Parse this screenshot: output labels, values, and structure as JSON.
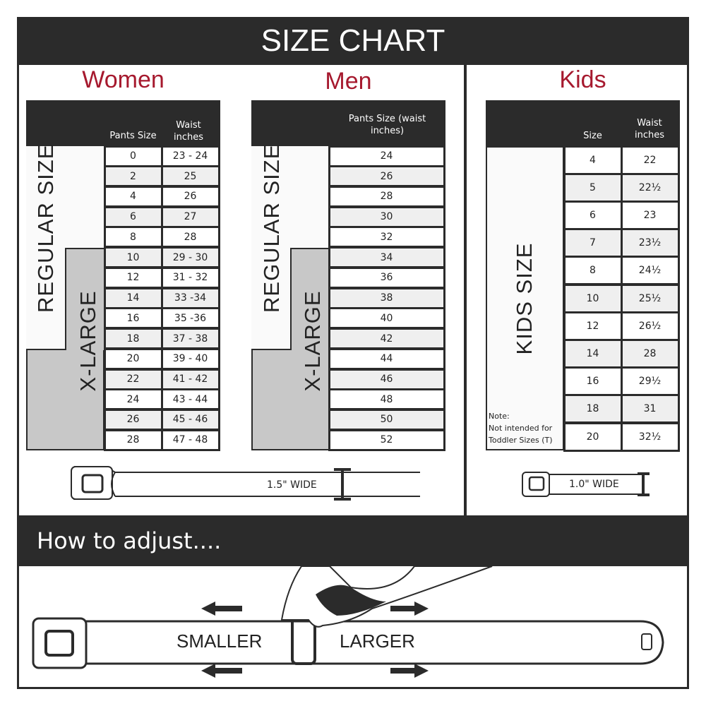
{
  "title": "SIZE CHART",
  "accent": "#a6192e",
  "women": {
    "heading": "Women",
    "col1": "Pants Size",
    "col2": "Waist inches",
    "regular": "REGULAR SIZE",
    "xlarge": "X-LARGE",
    "rows": [
      [
        "0",
        "23 - 24"
      ],
      [
        "2",
        "25"
      ],
      [
        "4",
        "26"
      ],
      [
        "6",
        "27"
      ],
      [
        "8",
        "28"
      ],
      [
        "10",
        "29 - 30"
      ],
      [
        "12",
        "31 - 32"
      ],
      [
        "14",
        "33 -34"
      ],
      [
        "16",
        "35 -36"
      ],
      [
        "18",
        "37 - 38"
      ],
      [
        "20",
        "39 - 40"
      ],
      [
        "22",
        "41 - 42"
      ],
      [
        "24",
        "43 - 44"
      ],
      [
        "26",
        "45 - 46"
      ],
      [
        "28",
        "47 - 48"
      ]
    ],
    "belt_width": "1.5\" WIDE"
  },
  "men": {
    "heading": "Men",
    "col1": "Pants Size (waist inches)",
    "regular": "REGULAR SIZE",
    "xlarge": "X-LARGE",
    "rows": [
      "24",
      "26",
      "28",
      "30",
      "32",
      "34",
      "36",
      "38",
      "40",
      "42",
      "44",
      "46",
      "48",
      "50",
      "52"
    ]
  },
  "kids": {
    "heading": "Kids",
    "col1": "Size",
    "col2": "Waist inches",
    "label": "KIDS SIZE",
    "note": "Note:",
    "note2": "Not intended for Toddler Sizes (T)",
    "rows": [
      [
        "4",
        "22"
      ],
      [
        "5",
        "22½"
      ],
      [
        "6",
        "23"
      ],
      [
        "7",
        "23½"
      ],
      [
        "8",
        "24½"
      ],
      [
        "10",
        "25½"
      ],
      [
        "12",
        "26½"
      ],
      [
        "14",
        "28"
      ],
      [
        "16",
        "29½"
      ],
      [
        "18",
        "31"
      ],
      [
        "20",
        "32½"
      ]
    ],
    "belt_width": "1.0\" WIDE"
  },
  "adjust": {
    "heading": "How to adjust....",
    "smaller": "SMALLER",
    "larger": "LARGER"
  }
}
